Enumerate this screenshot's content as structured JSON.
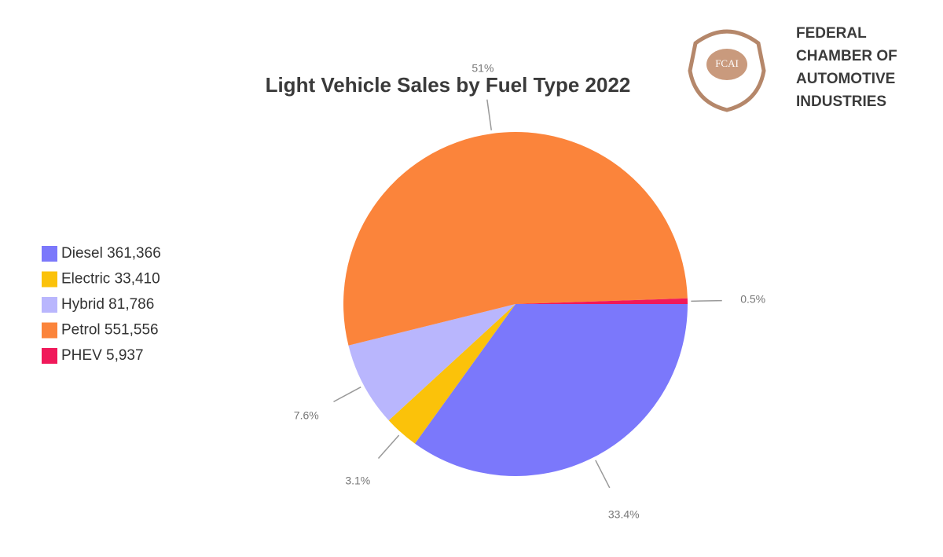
{
  "chart_data": {
    "type": "pie",
    "title": "Light Vehicle Sales by Fuel Type 2022",
    "categories": [
      "Diesel 361,366",
      "Electric 33,410",
      "Hybrid 81,786",
      "Petrol 551,556",
      "PHEV 5,937"
    ],
    "values": [
      33.4,
      3.1,
      7.6,
      51,
      0.5
    ],
    "value_labels": [
      "33.4%",
      "3.1%",
      "7.6%",
      "51%",
      "0.5%"
    ],
    "colors": [
      "#7b78fb",
      "#fbc20a",
      "#b9b6fd",
      "#fb843b",
      "#f0195a"
    ],
    "legend": "left"
  },
  "logo": {
    "badge": "FCAI",
    "lines": [
      "FEDERAL",
      "CHAMBER OF",
      "AUTOMOTIVE",
      "INDUSTRIES"
    ]
  }
}
